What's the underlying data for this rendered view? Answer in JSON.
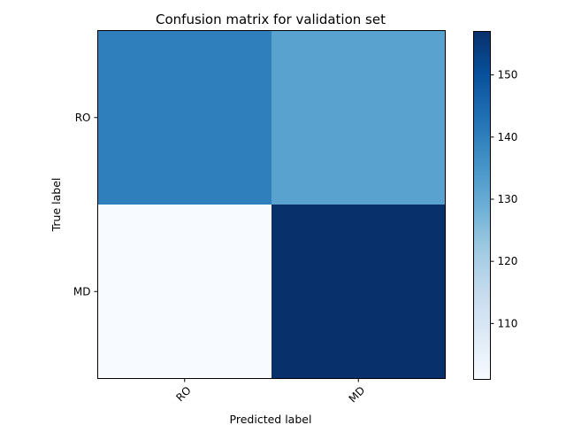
{
  "chart_data": {
    "type": "heatmap",
    "title": "Confusion matrix for validation set",
    "xlabel": "Predicted label",
    "ylabel": "True label",
    "x_categories": [
      "RO",
      "MD"
    ],
    "y_categories": [
      "RO",
      "MD"
    ],
    "values": [
      [
        140,
        132
      ],
      [
        101,
        157
      ]
    ],
    "colormap": "Blues",
    "color_range": [
      101,
      157
    ],
    "colorbar_ticks": [
      110,
      120,
      130,
      140,
      150
    ],
    "x_tick_rotation_deg": 45
  }
}
